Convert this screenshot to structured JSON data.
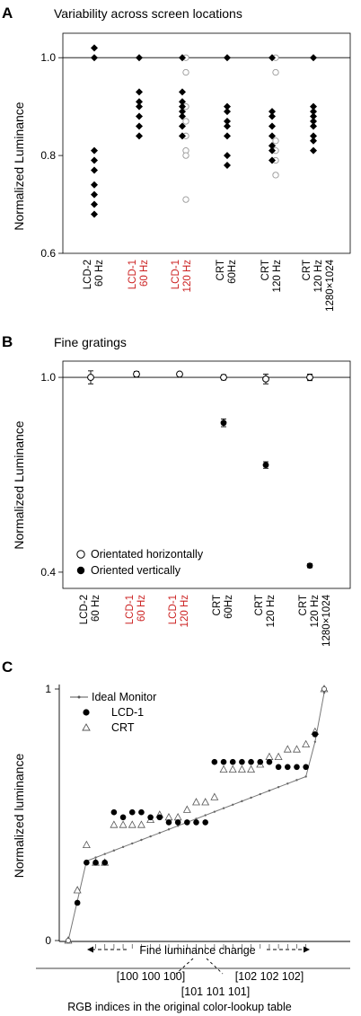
{
  "chart_data": [
    {
      "type": "scatter",
      "panel_label": "A",
      "title": "Variability across screen locations",
      "ylabel": "Normalized Luminance",
      "ylim": [
        0.6,
        1.05
      ],
      "yticks": [
        "1.0",
        "0.8",
        "0.6"
      ],
      "reference_line": 1.0,
      "categories": [
        {
          "lines": [
            "LCD-2",
            "60 Hz"
          ],
          "color": "#000000"
        },
        {
          "lines": [
            "LCD-1",
            "60 Hz"
          ],
          "color": "#cc2222"
        },
        {
          "lines": [
            "LCD-1",
            "120 Hz"
          ],
          "color": "#cc2222"
        },
        {
          "lines": [
            "CRT",
            "60Hz"
          ],
          "color": "#000000"
        },
        {
          "lines": [
            "CRT",
            "120 Hz"
          ],
          "color": "#000000"
        },
        {
          "lines": [
            "CRT",
            "120 Hz",
            "1280×1024"
          ],
          "color": "#000000"
        }
      ],
      "series": [
        {
          "marker": "diamond-filled",
          "values": [
            [
              1.02,
              1.0,
              0.81,
              0.79,
              0.77,
              0.74,
              0.72,
              0.7,
              0.68
            ],
            [
              1.0,
              0.93,
              0.91,
              0.9,
              0.88,
              0.86,
              0.84
            ],
            [
              1.0,
              0.93,
              0.91,
              0.9,
              0.89,
              0.88,
              0.86,
              0.84
            ],
            [
              1.0,
              0.9,
              0.89,
              0.87,
              0.86,
              0.84,
              0.8,
              0.78
            ],
            [
              1.0,
              0.89,
              0.88,
              0.86,
              0.84,
              0.82,
              0.82,
              0.81,
              0.79
            ],
            [
              1.0,
              0.9,
              0.89,
              0.88,
              0.87,
              0.86,
              0.84,
              0.83,
              0.81
            ]
          ]
        },
        {
          "marker": "circle-open",
          "values": [
            [],
            [],
            [
              1.0,
              0.97,
              0.9,
              0.87,
              0.84,
              0.81,
              0.8,
              0.71
            ],
            [],
            [
              1.0,
              0.97,
              0.83,
              0.81,
              0.79,
              0.76
            ],
            []
          ]
        }
      ]
    },
    {
      "type": "scatter",
      "panel_label": "B",
      "title": "Fine gratings",
      "ylabel": "Normalized Luminance",
      "ylim": [
        0.35,
        1.05
      ],
      "yticks": [
        "1.0",
        "0.4"
      ],
      "reference_line": 1.0,
      "categories": [
        {
          "lines": [
            "LCD-2",
            "60 Hz"
          ],
          "color": "#000000"
        },
        {
          "lines": [
            "LCD-1",
            "60 Hz"
          ],
          "color": "#cc2222"
        },
        {
          "lines": [
            "LCD-1",
            "120 Hz"
          ],
          "color": "#cc2222"
        },
        {
          "lines": [
            "CRT",
            "60Hz"
          ],
          "color": "#000000"
        },
        {
          "lines": [
            "CRT",
            "120 Hz"
          ],
          "color": "#000000"
        },
        {
          "lines": [
            "CRT",
            "120 Hz",
            "1280×1024"
          ],
          "color": "#000000"
        }
      ],
      "series": [
        {
          "name": "Orientated horizontally",
          "marker": "circle-open",
          "values": [
            1.0,
            1.01,
            1.01,
            1.0,
            0.995,
            1.0
          ],
          "errors": [
            0.02,
            0.008,
            0.005,
            0.008,
            0.015,
            0.01
          ]
        },
        {
          "name": "Oriented vertically",
          "marker": "circle-filled",
          "values": [
            null,
            null,
            null,
            0.86,
            0.73,
            0.42
          ],
          "errors": [
            null,
            null,
            null,
            0.012,
            0.01,
            0.006
          ]
        }
      ],
      "legend_position": "bottom-left"
    },
    {
      "type": "line",
      "panel_label": "C",
      "ylabel": "Normalized luminance",
      "yticks": [
        "1",
        "0"
      ],
      "ylim": [
        0,
        1
      ],
      "xlabel": "RGB indices in the original color-lookup table",
      "x_annotations": [
        "[100 100 100]",
        "[101 101 101]",
        "[102 102 102]"
      ],
      "arrow_label": "Fine luminance change",
      "x": [
        0,
        1,
        2,
        3,
        4,
        5,
        6,
        7,
        8,
        9,
        10,
        11,
        12,
        13,
        14,
        15,
        16,
        17,
        18,
        19,
        20,
        21,
        22,
        23,
        24,
        25,
        26,
        27,
        28
      ],
      "series": [
        {
          "name": "Ideal Monitor",
          "marker": "line-dot",
          "values": [
            0.0,
            0.158,
            0.316,
            0.33,
            0.344,
            0.358,
            0.372,
            0.386,
            0.4,
            0.414,
            0.428,
            0.442,
            0.456,
            0.47,
            0.484,
            0.498,
            0.512,
            0.526,
            0.54,
            0.554,
            0.568,
            0.582,
            0.596,
            0.61,
            0.624,
            0.638,
            0.652,
            0.79,
            0.985
          ]
        },
        {
          "name": "LCD-1",
          "marker": "circle-filled",
          "values": [
            0.0,
            0.15,
            0.31,
            0.31,
            0.31,
            0.51,
            0.49,
            0.51,
            0.51,
            0.49,
            0.49,
            0.47,
            0.47,
            0.47,
            0.47,
            0.47,
            0.71,
            0.71,
            0.71,
            0.71,
            0.71,
            0.71,
            0.71,
            0.69,
            0.69,
            0.69,
            0.69,
            0.82,
            1.0
          ]
        },
        {
          "name": "CRT",
          "marker": "triangle-open",
          "values": [
            0.0,
            0.2,
            0.38,
            0.31,
            0.31,
            0.46,
            0.46,
            0.46,
            0.46,
            0.48,
            0.5,
            0.49,
            0.49,
            0.52,
            0.55,
            0.55,
            0.57,
            0.68,
            0.68,
            0.68,
            0.68,
            0.7,
            0.73,
            0.73,
            0.76,
            0.76,
            0.78,
            0.83,
            1.0
          ]
        }
      ],
      "legend_position": "top-left"
    }
  ]
}
